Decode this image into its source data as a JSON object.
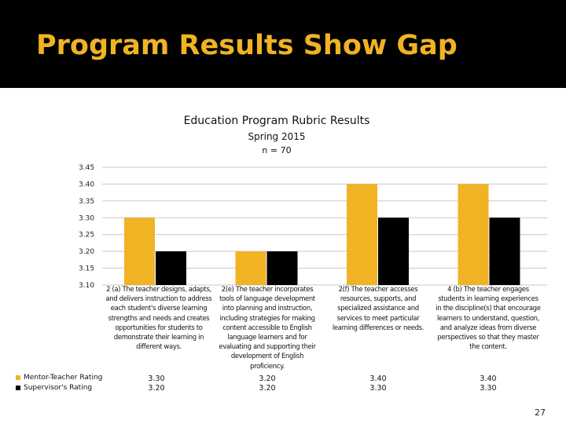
{
  "slide": {
    "title": "Program Results Show Gap",
    "page_number": "27"
  },
  "chart_data": {
    "type": "bar",
    "title": "Education Program Rubric Results",
    "subtitle": "Spring 2015",
    "sample_size": "n = 70",
    "categories": [
      "2 (a) The teacher designs, adapts, and delivers instruction to address each student's diverse learning strengths and needs and creates opportunities for students to demonstrate their learning in different ways.",
      "2(e) The teacher incorporates tools of language development into planning and instruction, including strategies for making content accessible to English language learners and for evaluating and supporting their development of English proficiency.",
      "2(f) The teacher accesses resources, supports, and specialized assistance and services to meet particular learning differences or needs.",
      "4 (b) The teacher engages students in learning experiences in the discipline(s) that encourage learners to understand, question, and analyze ideas from diverse perspectives so that they master the content."
    ],
    "series": [
      {
        "name": "Mentor-Teacher Rating",
        "color": "#f0b323",
        "values": [
          3.3,
          3.2,
          3.4,
          3.4
        ],
        "labels": [
          "3.30",
          "3.20",
          "3.40",
          "3.40"
        ]
      },
      {
        "name": "Supervisor's Rating",
        "color": "#000000",
        "values": [
          3.2,
          3.2,
          3.3,
          3.3
        ],
        "labels": [
          "3.20",
          "3.20",
          "3.30",
          "3.30"
        ]
      }
    ],
    "ylim": [
      3.1,
      3.45
    ],
    "yticks": [
      "3.10",
      "3.15",
      "3.20",
      "3.25",
      "3.30",
      "3.35",
      "3.40",
      "3.45"
    ],
    "legend": "bottom-left data table",
    "grid": true
  }
}
